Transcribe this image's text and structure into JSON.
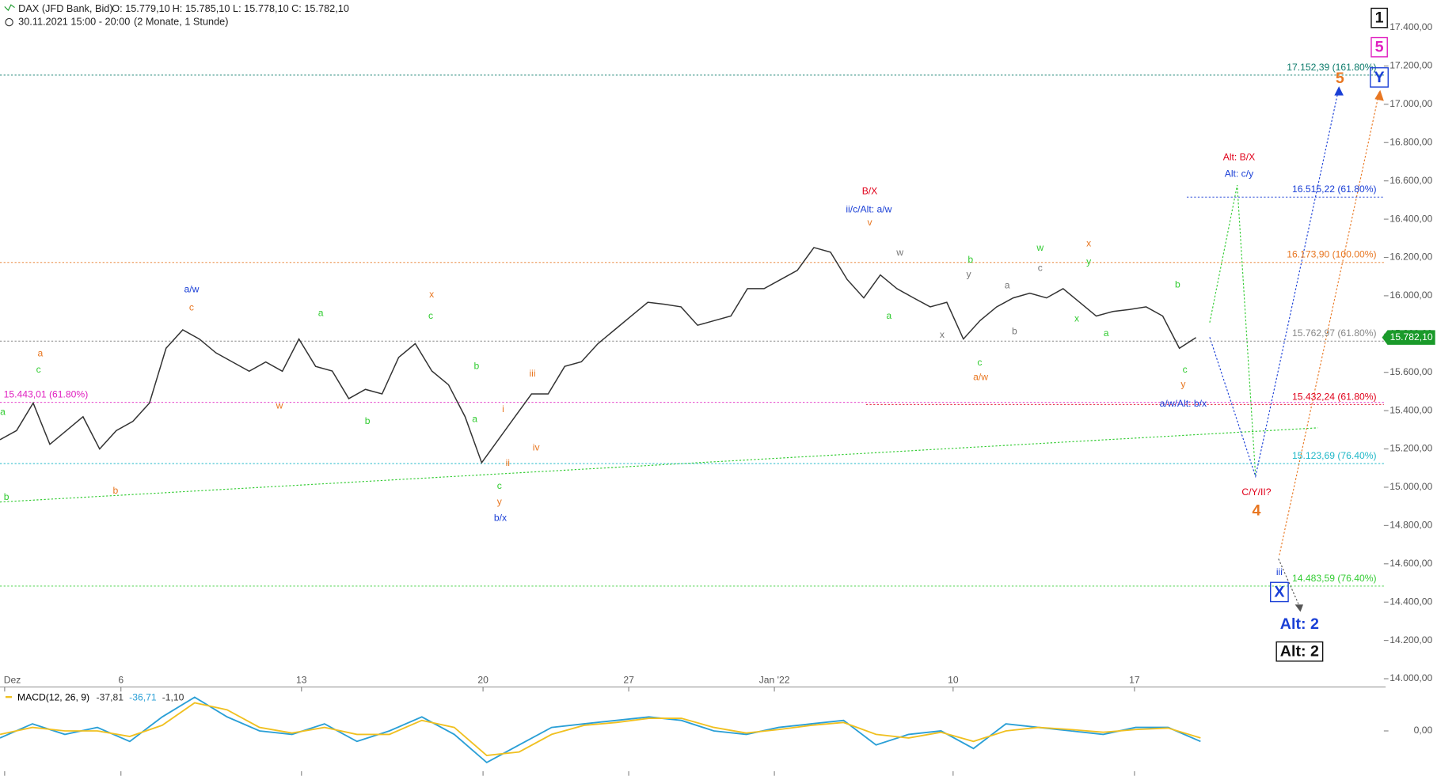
{
  "header": {
    "title": "DAX (JFD Bank, Bid)",
    "ohlc": [
      "O: 15.779,10",
      "H: 15.785,10",
      "L: 15.778,10",
      "C: 15.782,10"
    ],
    "period": "30.11.2021 15:00 - 20:00",
    "range": "(2 Monate, 1 Stunde)"
  },
  "chart_data": {
    "type": "line",
    "color": "#333333",
    "values": [
      15248,
      15296,
      15440,
      15224,
      15296,
      15368,
      15200,
      15296,
      15344,
      15440,
      15726,
      15822,
      15774,
      15702,
      15654,
      15606,
      15654,
      15606,
      15774,
      15631,
      15607,
      15463,
      15511,
      15487,
      15678,
      15750,
      15607,
      15535,
      15368,
      15128,
      15248,
      15368,
      15487,
      15487,
      15631,
      15655,
      15750,
      15822,
      15894,
      15966,
      15956,
      15942,
      15846,
      15870,
      15894,
      16037,
      16037,
      16085,
      16133,
      16252,
      16228,
      16085,
      15989,
      16109,
      16037,
      15989,
      15942,
      15966,
      15774,
      15870,
      15942,
      15989,
      16013,
      15989,
      16037,
      15966,
      15894,
      15918,
      15928,
      15942,
      15894,
      15726,
      15782
    ],
    "xlim": [
      0,
      82.76
    ],
    "xticks": [
      {
        "value": 0.28,
        "label": "Dez"
      },
      {
        "value": 7.28,
        "label": "6"
      },
      {
        "value": 18.15,
        "label": "13"
      },
      {
        "value": 29.08,
        "label": "20"
      },
      {
        "value": 37.85,
        "label": "27"
      },
      {
        "value": 46.62,
        "label": "Jan '22"
      },
      {
        "value": 57.38,
        "label": "10"
      },
      {
        "value": 68.3,
        "label": "17"
      }
    ],
    "ylim": [
      14000,
      17400
    ],
    "yticks": [
      {
        "value": 14000,
        "label": "14.000,00"
      },
      {
        "value": 14200,
        "label": "14.200,00"
      },
      {
        "value": 14400,
        "label": "14.400,00"
      },
      {
        "value": 14600,
        "label": "14.600,00"
      },
      {
        "value": 14800,
        "label": "14.800,00"
      },
      {
        "value": 15000,
        "label": "15.000,00"
      },
      {
        "value": 15200,
        "label": "15.200,00"
      },
      {
        "value": 15400,
        "label": "15.400,00"
      },
      {
        "value": 15600,
        "label": "15.600,00"
      },
      {
        "value": 15800,
        "label": "15.800,00"
      },
      {
        "value": 16000,
        "label": "16.000,00"
      },
      {
        "value": 16200,
        "label": "16.200,00"
      },
      {
        "value": 16400,
        "label": "16.400,00"
      },
      {
        "value": 16600,
        "label": "16.600,00"
      },
      {
        "value": 16800,
        "label": "16.800,00"
      },
      {
        "value": 17000,
        "label": "17.000,00"
      },
      {
        "value": 17200,
        "label": "17.200,00"
      },
      {
        "value": 17400,
        "label": "17.400,00"
      }
    ],
    "last": {
      "value": 15782.1,
      "label": "15.782,10",
      "color": "#1a9a2a"
    },
    "levels": [
      {
        "value": 17152.39,
        "label": "17.152,39 (161.80%)",
        "color": "#0a7a6a"
      },
      {
        "value": 16515.22,
        "label": "16.515,22 (61.80%)",
        "color": "#1a3fd6"
      },
      {
        "value": 16173.9,
        "label": "16.173,90 (100.00%)",
        "color": "#e87722"
      },
      {
        "value": 15762.97,
        "label": "15.762,97 (61.80%)",
        "color": "#888888"
      },
      {
        "value": 15443.01,
        "label": "15.443,01 (61.80%)",
        "color": "#e020c0"
      },
      {
        "value": 15432.24,
        "label": "15.432,24 (61.80%)",
        "color": "#e0001a"
      },
      {
        "value": 15123.69,
        "label": "15.123,69 (76.40%)",
        "color": "#20b8c8"
      },
      {
        "value": 14483.59,
        "label": "14.483,59 (76.40%)",
        "color": "#33cc33"
      }
    ],
    "annotations": [
      {
        "text": "a",
        "color": "#33cc33"
      },
      {
        "text": "a",
        "color": "#e87722"
      },
      {
        "text": "c",
        "color": "#33cc33"
      },
      {
        "text": "b",
        "color": "#33cc33"
      },
      {
        "text": "b",
        "color": "#e87722"
      },
      {
        "text": "a/w",
        "color": "#1a3fd6"
      },
      {
        "text": "c",
        "color": "#e87722"
      },
      {
        "text": "a",
        "color": "#33cc33"
      },
      {
        "text": "w",
        "color": "#e87722"
      },
      {
        "text": "b",
        "color": "#33cc33"
      },
      {
        "text": "x",
        "color": "#e87722"
      },
      {
        "text": "c",
        "color": "#33cc33"
      },
      {
        "text": "b",
        "color": "#33cc33"
      },
      {
        "text": "a",
        "color": "#33cc33"
      },
      {
        "text": "iii",
        "color": "#e87722"
      },
      {
        "text": "i",
        "color": "#e87722"
      },
      {
        "text": "iv",
        "color": "#e87722"
      },
      {
        "text": "ii",
        "color": "#e87722"
      },
      {
        "text": "c",
        "color": "#33cc33"
      },
      {
        "text": "y",
        "color": "#e87722"
      },
      {
        "text": "b/x",
        "color": "#1a3fd6"
      },
      {
        "text": "B/X",
        "color": "#e0001a"
      },
      {
        "text": "ii/c/Alt: a/w",
        "color": "#1a3fd6"
      },
      {
        "text": "v",
        "color": "#e87722"
      },
      {
        "text": "w",
        "color": "#777777"
      },
      {
        "text": "a",
        "color": "#33cc33"
      },
      {
        "text": "b",
        "color": "#33cc33"
      },
      {
        "text": "y",
        "color": "#777777"
      },
      {
        "text": "x",
        "color": "#777777"
      },
      {
        "text": "c",
        "color": "#33cc33"
      },
      {
        "text": "a/w",
        "color": "#e87722"
      },
      {
        "text": "a",
        "color": "#777777"
      },
      {
        "text": "b",
        "color": "#777777"
      },
      {
        "text": "w",
        "color": "#33cc33"
      },
      {
        "text": "c",
        "color": "#777777"
      },
      {
        "text": "x",
        "color": "#e87722"
      },
      {
        "text": "y",
        "color": "#33cc33"
      },
      {
        "text": "x",
        "color": "#33cc33"
      },
      {
        "text": "a",
        "color": "#33cc33"
      },
      {
        "text": "b",
        "color": "#33cc33"
      },
      {
        "text": "c",
        "color": "#33cc33"
      },
      {
        "text": "y",
        "color": "#e87722"
      },
      {
        "text": "a/w/Alt: b/x",
        "color": "#1a3fd6"
      },
      {
        "text": "Alt: B/X",
        "color": "#e0001a"
      },
      {
        "text": "Alt: c/y",
        "color": "#1a3fd6"
      },
      {
        "text": "C/Y/II?",
        "color": "#e0001a"
      },
      {
        "text": "4",
        "color": "#e87722"
      },
      {
        "text": "iii",
        "color": "#1a3fd6"
      },
      {
        "text": "5",
        "color": "#e87722"
      },
      {
        "text": "1",
        "color": "#111111"
      },
      {
        "text": "5",
        "color": "#e020c0"
      },
      {
        "text": "Y",
        "color": "#1a3fd6"
      },
      {
        "text": "X",
        "color": "#1a3fd6"
      },
      {
        "text": "Alt: 2",
        "color": "#1a3fd6"
      },
      {
        "text": "Alt: 2",
        "color": "#111111"
      }
    ]
  },
  "macd": {
    "type": "line",
    "label": "MACD(12, 26, 9)",
    "readouts": [
      {
        "label": "-37,81",
        "color": "#333333"
      },
      {
        "label": "-36,71",
        "color": "#2a9fd6"
      },
      {
        "label": "-1,10",
        "color": "#333333"
      }
    ],
    "ylim": [
      -60,
      60
    ],
    "yticks": [
      {
        "value": 0,
        "label": "0,00"
      }
    ],
    "series": [
      {
        "color": "#2a9fd6",
        "values": [
          -10,
          10,
          -5,
          5,
          -15,
          20,
          48,
          20,
          0,
          -5,
          10,
          -15,
          0,
          20,
          -5,
          -45,
          -20,
          5,
          10,
          15,
          20,
          15,
          0,
          -5,
          5,
          10,
          15,
          -20,
          -5,
          0,
          -25,
          10,
          5,
          0,
          -5,
          5,
          5,
          -15
        ]
      },
      {
        "color": "#f0c020",
        "values": [
          -5,
          5,
          0,
          0,
          -8,
          8,
          40,
          30,
          5,
          -3,
          5,
          -5,
          -5,
          15,
          5,
          -35,
          -30,
          -5,
          8,
          12,
          18,
          18,
          5,
          -3,
          2,
          8,
          12,
          -5,
          -10,
          -2,
          -15,
          0,
          5,
          2,
          -2,
          2,
          4,
          -10
        ]
      }
    ]
  }
}
